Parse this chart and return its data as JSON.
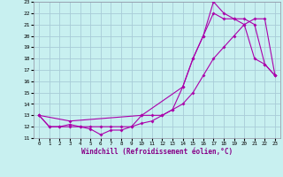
{
  "xlabel": "Windchill (Refroidissement éolien,°C)",
  "bg_color": "#c8f0f0",
  "grid_color": "#a8ccd8",
  "line_color": "#aa00aa",
  "xlim": [
    -0.5,
    23.5
  ],
  "ylim": [
    11,
    23
  ],
  "xticks": [
    0,
    1,
    2,
    3,
    4,
    5,
    6,
    7,
    8,
    9,
    10,
    11,
    12,
    13,
    14,
    15,
    16,
    17,
    18,
    19,
    20,
    21,
    22,
    23
  ],
  "yticks": [
    11,
    12,
    13,
    14,
    15,
    16,
    17,
    18,
    19,
    20,
    21,
    22,
    23
  ],
  "line1_x": [
    0,
    1,
    2,
    3,
    4,
    5,
    6,
    7,
    8,
    9,
    10,
    11,
    12,
    13,
    14,
    15,
    16,
    17,
    18,
    19,
    20,
    21,
    22,
    23
  ],
  "line1_y": [
    13,
    12,
    12,
    12,
    12,
    12,
    12,
    12,
    12,
    12,
    13,
    13,
    13,
    13.5,
    15.5,
    18,
    20,
    22,
    21.5,
    21.5,
    21,
    18,
    17.5,
    16.5
  ],
  "line2_x": [
    0,
    3,
    10,
    14,
    15,
    16,
    17,
    18,
    19,
    20,
    21,
    22,
    23
  ],
  "line2_y": [
    13,
    12.5,
    13,
    15.5,
    18,
    20,
    23,
    22,
    21.5,
    21.5,
    21,
    17.5,
    16.5
  ],
  "line3_x": [
    0,
    1,
    2,
    3,
    4,
    5,
    6,
    7,
    8,
    9,
    10,
    11,
    12,
    13,
    14,
    15,
    16,
    17,
    18,
    19,
    20,
    21,
    22,
    23
  ],
  "line3_y": [
    13,
    12,
    12,
    12.2,
    12,
    11.8,
    11.3,
    11.7,
    11.7,
    12,
    12.3,
    12.5,
    13,
    13.5,
    14,
    15,
    16.5,
    18,
    19,
    20,
    21,
    21.5,
    21.5,
    16.5
  ]
}
